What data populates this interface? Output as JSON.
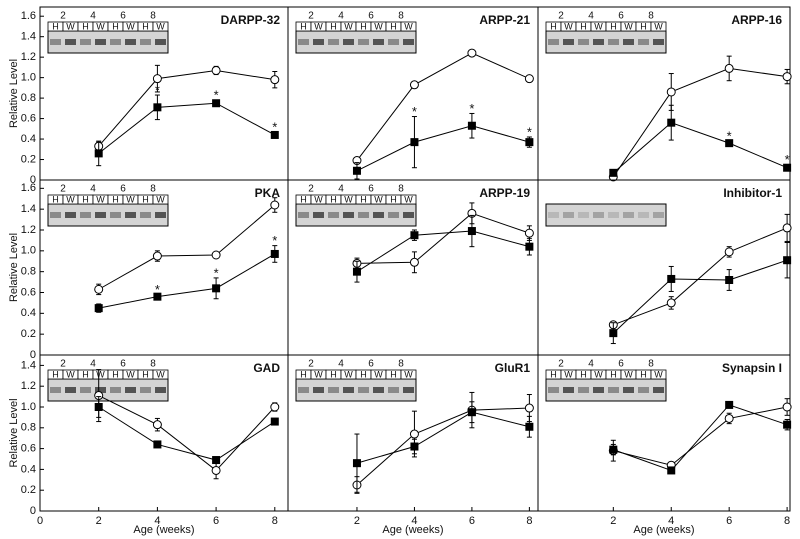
{
  "chart_data": [
    {
      "type": "line",
      "title": "DARPP-32",
      "ylabel": "Relative Level",
      "ylim": [
        0,
        1.69
      ],
      "xlim": [
        0,
        8.45
      ],
      "yticks": [
        0,
        0.2,
        0.4,
        0.6,
        0.8,
        {
          "value": 1,
          "label": "1.0"
        },
        1.2,
        1.4,
        1.6
      ],
      "blot_weeks": [
        "2",
        "4",
        "6",
        "8"
      ],
      "blot_lanes": [
        "H",
        "W",
        "H",
        "W",
        "H",
        "W",
        "H",
        "W"
      ],
      "x": [
        2,
        4,
        6,
        8
      ],
      "series": [
        {
          "marker": "open-circle",
          "color": "#000000",
          "values": [
            0.33,
            0.99,
            1.07,
            0.98
          ],
          "errors": [
            0.04,
            0.13,
            0.04,
            0.08
          ]
        },
        {
          "marker": "filled-square",
          "color": "#000000",
          "values": [
            0.26,
            0.71,
            0.75,
            0.44
          ],
          "errors": [
            0.12,
            0.12,
            0.03,
            0.03
          ],
          "annotations": [
            null,
            "*",
            "*",
            "*"
          ]
        }
      ]
    },
    {
      "type": "line",
      "title": "ARPP-21",
      "ylim": [
        0,
        1.69
      ],
      "xlim": [
        -0.4,
        8.3
      ],
      "blot_weeks": [
        "2",
        "4",
        "6",
        "8"
      ],
      "blot_lanes": [
        "H",
        "W",
        "H",
        "W",
        "H",
        "W",
        "H",
        "W"
      ],
      "x": [
        2,
        4,
        6,
        8
      ],
      "series": [
        {
          "marker": "open-circle",
          "color": "#000000",
          "values": [
            0.19,
            0.93,
            1.24,
            0.99
          ],
          "errors": [
            0.02,
            0.02,
            0.02,
            0.02
          ]
        },
        {
          "marker": "filled-square",
          "color": "#000000",
          "values": [
            0.09,
            0.37,
            0.53,
            0.37
          ],
          "errors": [
            0.08,
            0.25,
            0.12,
            0.05
          ],
          "annotations": [
            null,
            "*",
            "*",
            "*"
          ]
        }
      ]
    },
    {
      "type": "line",
      "title": "ARPP-16",
      "ylim": [
        0,
        1.69
      ],
      "xlim": [
        -0.6,
        8.1
      ],
      "blot_weeks": [
        "2",
        "4",
        "6",
        "8"
      ],
      "blot_lanes": [
        "H",
        "W",
        "H",
        "W",
        "H",
        "W",
        "H",
        "W"
      ],
      "x": [
        2,
        4,
        6,
        8
      ],
      "series": [
        {
          "marker": "open-circle",
          "color": "#000000",
          "values": [
            0.03,
            0.86,
            1.09,
            1.01
          ],
          "errors": [
            0.03,
            0.18,
            0.12,
            0.07
          ]
        },
        {
          "marker": "filled-square",
          "color": "#000000",
          "values": [
            0.07,
            0.56,
            0.36,
            0.12
          ],
          "errors": [
            0.03,
            0.17,
            0.02,
            0.03
          ],
          "annotations": [
            null,
            null,
            "*",
            "*"
          ]
        }
      ]
    },
    {
      "type": "line",
      "title": "PKA",
      "ylabel": "Relative Level",
      "ylim": [
        0,
        1.68
      ],
      "xlim": [
        0,
        8.45
      ],
      "yticks": [
        0,
        0.2,
        0.4,
        0.6,
        0.8,
        {
          "value": 1,
          "label": "1.0"
        },
        1.2,
        1.4,
        1.6
      ],
      "blot_weeks": [
        "2",
        "4",
        "6",
        "8"
      ],
      "blot_lanes": [
        "H",
        "W",
        "H",
        "W",
        "H",
        "W",
        "H",
        "W"
      ],
      "x": [
        2,
        4,
        6,
        8
      ],
      "series": [
        {
          "marker": "open-circle",
          "color": "#000000",
          "values": [
            0.63,
            0.95,
            0.96,
            1.44
          ],
          "errors": [
            0.05,
            0.05,
            0.02,
            0.07
          ]
        },
        {
          "marker": "filled-square",
          "color": "#000000",
          "values": [
            0.45,
            0.56,
            0.64,
            0.97
          ],
          "errors": [
            0.04,
            0.02,
            0.1,
            0.08
          ],
          "annotations": [
            null,
            "*",
            "*",
            "*"
          ]
        }
      ]
    },
    {
      "type": "line",
      "title": "ARPP-19",
      "ylim": [
        0,
        1.68
      ],
      "xlim": [
        -0.4,
        8.3
      ],
      "blot_weeks": [
        "2",
        "4",
        "6",
        "8"
      ],
      "blot_lanes": [
        "H",
        "W",
        "H",
        "W",
        "H",
        "W",
        "H",
        "W"
      ],
      "x": [
        2,
        4,
        6,
        8
      ],
      "series": [
        {
          "marker": "open-circle",
          "color": "#000000",
          "values": [
            0.88,
            0.89,
            1.36,
            1.17
          ],
          "errors": [
            0.05,
            0.1,
            0.1,
            0.07
          ]
        },
        {
          "marker": "filled-square",
          "color": "#000000",
          "values": [
            0.8,
            1.15,
            1.19,
            1.04
          ],
          "errors": [
            0.1,
            0.05,
            0.15,
            0.08
          ]
        }
      ]
    },
    {
      "type": "line",
      "title": "Inhibitor-1",
      "ylim": [
        0,
        1.68
      ],
      "xlim": [
        -0.6,
        8.1
      ],
      "x": [
        2,
        4,
        6,
        8
      ],
      "series": [
        {
          "marker": "open-circle",
          "color": "#000000",
          "values": [
            0.29,
            0.5,
            0.99,
            1.22
          ],
          "errors": [
            0.02,
            0.06,
            0.05,
            0.13
          ]
        },
        {
          "marker": "filled-square",
          "color": "#000000",
          "values": [
            0.21,
            0.73,
            0.72,
            0.91
          ],
          "errors": [
            0.1,
            0.12,
            0.1,
            0.17
          ]
        }
      ]
    },
    {
      "type": "line",
      "title": "GAD",
      "ylabel": "Relative Level",
      "xlabel": "Age (weeks)",
      "ylim": [
        0,
        1.5
      ],
      "xlim": [
        0,
        8.45
      ],
      "yticks": [
        0,
        0.2,
        0.4,
        0.6,
        0.8,
        {
          "value": 1,
          "label": "1.0"
        },
        1.2,
        1.4
      ],
      "xticks": [
        0,
        2,
        4,
        6,
        8
      ],
      "blot_weeks": [
        "2",
        "4",
        "6",
        "8"
      ],
      "blot_lanes": [
        "H",
        "W",
        "H",
        "W",
        "H",
        "W",
        "H",
        "W"
      ],
      "x": [
        2,
        4,
        6,
        8
      ],
      "series": [
        {
          "marker": "open-circle",
          "color": "#000000",
          "values": [
            1.11,
            0.83,
            0.39,
            1.0
          ],
          "errors": [
            0.25,
            0.06,
            0.08,
            0.04
          ]
        },
        {
          "marker": "filled-square",
          "color": "#000000",
          "values": [
            1.0,
            0.64,
            0.49,
            0.86
          ],
          "errors": [
            0.1,
            0.02,
            0.02,
            0.02
          ]
        }
      ]
    },
    {
      "type": "line",
      "title": "GluR1",
      "xlabel": "Age (weeks)",
      "ylim": [
        0,
        1.5
      ],
      "xlim": [
        -0.4,
        8.3
      ],
      "xticks": [
        2,
        4,
        6,
        8
      ],
      "blot_weeks": [
        "2",
        "4",
        "6",
        "8"
      ],
      "blot_lanes": [
        "H",
        "W",
        "H",
        "W",
        "H",
        "W",
        "H",
        "W"
      ],
      "x": [
        2,
        4,
        6,
        8
      ],
      "series": [
        {
          "marker": "open-circle",
          "color": "#000000",
          "values": [
            0.25,
            0.74,
            0.97,
            0.99
          ],
          "errors": [
            0.08,
            0.22,
            0.17,
            0.13
          ]
        },
        {
          "marker": "filled-square",
          "color": "#000000",
          "values": [
            0.46,
            0.62,
            0.95,
            0.81
          ],
          "errors": [
            0.28,
            0.07,
            0.1,
            0.1
          ]
        }
      ]
    },
    {
      "type": "line",
      "title": "Synapsin I",
      "xlabel": "Age (weeks)",
      "ylim": [
        0,
        1.5
      ],
      "xlim": [
        -0.6,
        8.1
      ],
      "xticks": [
        2,
        4,
        6,
        8
      ],
      "blot_weeks": [
        "2",
        "4",
        "6",
        "8"
      ],
      "blot_lanes": [
        "H",
        "W",
        "H",
        "W",
        "H",
        "W",
        "H",
        "W"
      ],
      "x": [
        2,
        4,
        6,
        8
      ],
      "series": [
        {
          "marker": "open-circle",
          "color": "#000000",
          "values": [
            0.58,
            0.44,
            0.89,
            1.0
          ],
          "errors": [
            0.1,
            0.03,
            0.05,
            0.08
          ]
        },
        {
          "marker": "filled-square",
          "color": "#000000",
          "values": [
            0.59,
            0.39,
            1.02,
            0.83
          ],
          "errors": [
            0.05,
            0.02,
            0.02,
            0.05
          ]
        }
      ]
    }
  ]
}
